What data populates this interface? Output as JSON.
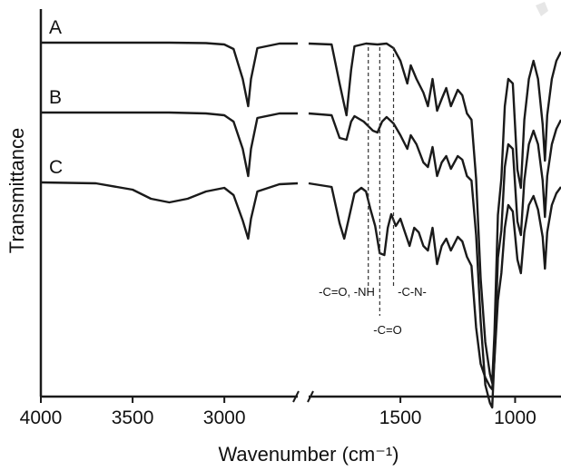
{
  "chart_data": {
    "type": "line",
    "xlabel": "Wavenumber (cm⁻¹)",
    "ylabel": "Transmittance",
    "xlim": [
      4000,
      800
    ],
    "x_break": [
      2600,
      1900
    ],
    "x_tick_labels": [
      "4000",
      "3500",
      "3000",
      "1500",
      "1000"
    ],
    "x_ticks": [
      4000,
      3500,
      3000,
      1500,
      1000
    ],
    "grid": false,
    "series": [
      {
        "name": "A",
        "points": [
          [
            4000,
            0
          ],
          [
            3600,
            0
          ],
          [
            3300,
            0
          ],
          [
            3100,
            -0.5
          ],
          [
            3000,
            -2
          ],
          [
            2950,
            -7
          ],
          [
            2900,
            -40
          ],
          [
            2870,
            -70
          ],
          [
            2855,
            -40
          ],
          [
            2820,
            -6
          ],
          [
            2700,
            -1
          ],
          [
            2600,
            -1
          ],
          [
            1900,
            -1
          ],
          [
            1800,
            -2
          ],
          [
            1765,
            -45
          ],
          [
            1735,
            -80
          ],
          [
            1715,
            -30
          ],
          [
            1700,
            -4
          ],
          [
            1650,
            -1
          ],
          [
            1600,
            -2
          ],
          [
            1560,
            -1
          ],
          [
            1530,
            -6
          ],
          [
            1500,
            -20
          ],
          [
            1470,
            -45
          ],
          [
            1455,
            -25
          ],
          [
            1430,
            -40
          ],
          [
            1400,
            -55
          ],
          [
            1380,
            -70
          ],
          [
            1360,
            -40
          ],
          [
            1340,
            -75
          ],
          [
            1320,
            -62
          ],
          [
            1300,
            -50
          ],
          [
            1280,
            -70
          ],
          [
            1250,
            -52
          ],
          [
            1230,
            -58
          ],
          [
            1210,
            -78
          ],
          [
            1190,
            -85
          ],
          [
            1170,
            -150
          ],
          [
            1150,
            -260
          ],
          [
            1130,
            -330
          ],
          [
            1110,
            -365
          ],
          [
            1100,
            -375
          ],
          [
            1090,
            -320
          ],
          [
            1075,
            -190
          ],
          [
            1060,
            -150
          ],
          [
            1045,
            -70
          ],
          [
            1030,
            -40
          ],
          [
            1010,
            -45
          ],
          [
            990,
            -140
          ],
          [
            975,
            -160
          ],
          [
            960,
            -85
          ],
          [
            940,
            -40
          ],
          [
            920,
            -20
          ],
          [
            900,
            -40
          ],
          [
            880,
            -90
          ],
          [
            870,
            -130
          ],
          [
            860,
            -80
          ],
          [
            840,
            -40
          ],
          [
            820,
            -20
          ],
          [
            800,
            -10
          ]
        ]
      },
      {
        "name": "B",
        "points": [
          [
            4000,
            0
          ],
          [
            3600,
            0
          ],
          [
            3300,
            0
          ],
          [
            3100,
            -1
          ],
          [
            3000,
            -3
          ],
          [
            2950,
            -10
          ],
          [
            2900,
            -40
          ],
          [
            2870,
            -70
          ],
          [
            2855,
            -40
          ],
          [
            2820,
            -6
          ],
          [
            2700,
            -1
          ],
          [
            2600,
            -1
          ],
          [
            1900,
            -1
          ],
          [
            1800,
            -3
          ],
          [
            1765,
            -28
          ],
          [
            1735,
            -30
          ],
          [
            1715,
            -10
          ],
          [
            1700,
            -4
          ],
          [
            1660,
            -10
          ],
          [
            1620,
            -20
          ],
          [
            1600,
            -22
          ],
          [
            1580,
            -10
          ],
          [
            1560,
            -5
          ],
          [
            1530,
            -12
          ],
          [
            1500,
            -25
          ],
          [
            1470,
            -40
          ],
          [
            1455,
            -25
          ],
          [
            1430,
            -35
          ],
          [
            1400,
            -55
          ],
          [
            1380,
            -60
          ],
          [
            1360,
            -38
          ],
          [
            1340,
            -70
          ],
          [
            1320,
            -55
          ],
          [
            1300,
            -48
          ],
          [
            1280,
            -62
          ],
          [
            1250,
            -48
          ],
          [
            1230,
            -52
          ],
          [
            1210,
            -70
          ],
          [
            1190,
            -75
          ],
          [
            1170,
            -135
          ],
          [
            1150,
            -230
          ],
          [
            1130,
            -300
          ],
          [
            1110,
            -320
          ],
          [
            1100,
            -325
          ],
          [
            1090,
            -270
          ],
          [
            1075,
            -160
          ],
          [
            1060,
            -130
          ],
          [
            1045,
            -60
          ],
          [
            1030,
            -35
          ],
          [
            1010,
            -40
          ],
          [
            990,
            -120
          ],
          [
            975,
            -135
          ],
          [
            960,
            -75
          ],
          [
            940,
            -35
          ],
          [
            920,
            -20
          ],
          [
            900,
            -35
          ],
          [
            880,
            -75
          ],
          [
            870,
            -115
          ],
          [
            860,
            -70
          ],
          [
            840,
            -35
          ],
          [
            820,
            -18
          ],
          [
            800,
            -8
          ]
        ]
      },
      {
        "name": "C",
        "points": [
          [
            4000,
            0
          ],
          [
            3700,
            -1
          ],
          [
            3500,
            -8
          ],
          [
            3400,
            -18
          ],
          [
            3300,
            -22
          ],
          [
            3200,
            -18
          ],
          [
            3100,
            -10
          ],
          [
            3000,
            -6
          ],
          [
            2950,
            -14
          ],
          [
            2900,
            -42
          ],
          [
            2870,
            -62
          ],
          [
            2855,
            -40
          ],
          [
            2820,
            -10
          ],
          [
            2700,
            -2
          ],
          [
            2600,
            -1
          ],
          [
            1900,
            -1
          ],
          [
            1800,
            -5
          ],
          [
            1765,
            -45
          ],
          [
            1745,
            -62
          ],
          [
            1725,
            -40
          ],
          [
            1700,
            -12
          ],
          [
            1670,
            -6
          ],
          [
            1650,
            -10
          ],
          [
            1630,
            -30
          ],
          [
            1610,
            -48
          ],
          [
            1590,
            -78
          ],
          [
            1570,
            -80
          ],
          [
            1555,
            -50
          ],
          [
            1540,
            -35
          ],
          [
            1520,
            -48
          ],
          [
            1500,
            -40
          ],
          [
            1480,
            -55
          ],
          [
            1460,
            -70
          ],
          [
            1440,
            -50
          ],
          [
            1420,
            -55
          ],
          [
            1400,
            -70
          ],
          [
            1380,
            -75
          ],
          [
            1360,
            -50
          ],
          [
            1340,
            -90
          ],
          [
            1320,
            -70
          ],
          [
            1300,
            -62
          ],
          [
            1280,
            -75
          ],
          [
            1250,
            -60
          ],
          [
            1230,
            -65
          ],
          [
            1210,
            -82
          ],
          [
            1190,
            -92
          ],
          [
            1170,
            -160
          ],
          [
            1150,
            -200
          ],
          [
            1130,
            -215
          ],
          [
            1110,
            -225
          ],
          [
            1100,
            -228
          ],
          [
            1090,
            -195
          ],
          [
            1075,
            -130
          ],
          [
            1060,
            -100
          ],
          [
            1045,
            -50
          ],
          [
            1030,
            -25
          ],
          [
            1010,
            -32
          ],
          [
            990,
            -85
          ],
          [
            975,
            -100
          ],
          [
            960,
            -55
          ],
          [
            940,
            -25
          ],
          [
            920,
            -15
          ],
          [
            900,
            -30
          ],
          [
            880,
            -60
          ],
          [
            870,
            -95
          ],
          [
            860,
            -55
          ],
          [
            840,
            -25
          ],
          [
            820,
            -12
          ],
          [
            800,
            -5
          ]
        ]
      }
    ],
    "annotations": [
      {
        "text": "-C=O, -NH",
        "x": 1640
      },
      {
        "text": "-C=O",
        "x": 1590
      },
      {
        "text": "-C-N-",
        "x": 1530
      }
    ],
    "colors": {
      "line": "#1a1a1a",
      "background": "#ffffff",
      "dash": "#333333"
    }
  }
}
